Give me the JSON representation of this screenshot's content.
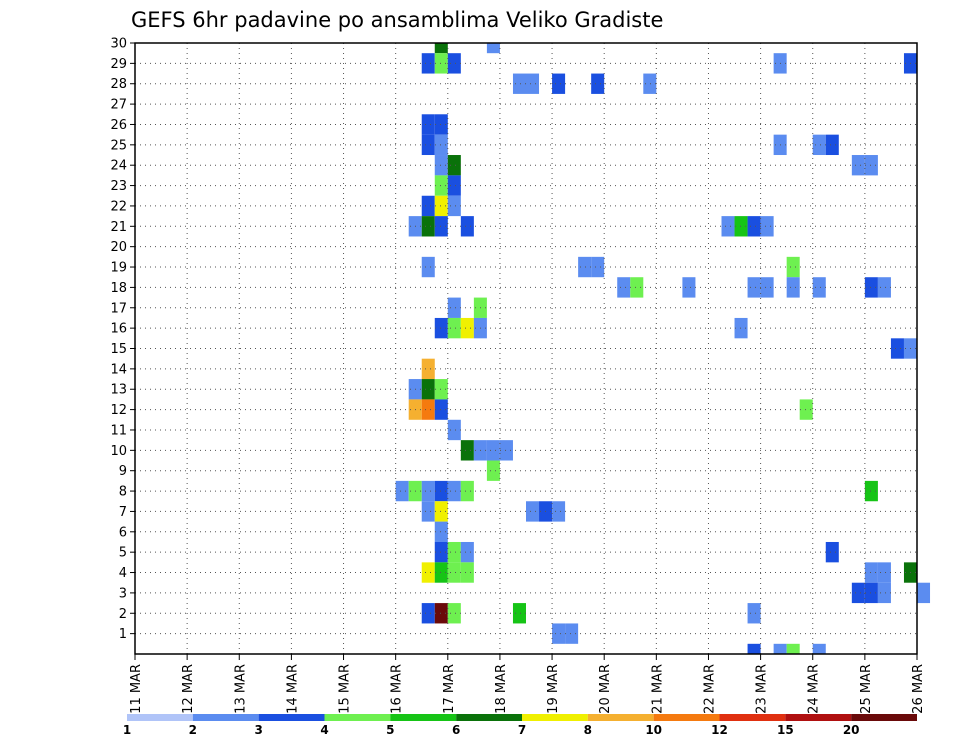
{
  "chart_data": {
    "type": "heatmap",
    "title": "GEFS 6hr padavine po ansamblima Veliko Gradiste",
    "xlabel": "",
    "ylabel": "",
    "x_ticks": [
      "11 MAR",
      "12 MAR",
      "13 MAR",
      "14 MAR",
      "15 MAR",
      "16 MAR",
      "17 MAR",
      "18 MAR",
      "19 MAR",
      "20 MAR",
      "21 MAR",
      "22 MAR",
      "23 MAR",
      "24 MAR",
      "25 MAR",
      "26 MAR"
    ],
    "y_ticks": [
      1,
      2,
      3,
      4,
      5,
      6,
      7,
      8,
      9,
      10,
      11,
      12,
      13,
      14,
      15,
      16,
      17,
      18,
      19,
      20,
      21,
      22,
      23,
      24,
      25,
      26,
      27,
      28,
      29,
      30
    ],
    "xlim_days": [
      0,
      15
    ],
    "ylim_members": [
      0,
      30
    ],
    "grid": true,
    "colorbar": {
      "labels": [
        "1",
        "2",
        "3",
        "4",
        "5",
        "6",
        "7",
        "8",
        "10",
        "12",
        "15",
        "20"
      ],
      "colors": [
        "#b0c4f8",
        "#5b8cf0",
        "#1a4fe0",
        "#6ef050",
        "#16c416",
        "#0a720a",
        "#f0f000",
        "#f5b030",
        "#f57a0f",
        "#e03010",
        "#b01010",
        "#6a0a0a"
      ]
    },
    "cell_days": 0.25,
    "cells": [
      [
        30,
        5.75,
        5
      ],
      [
        30,
        6.75,
        1
      ],
      [
        29,
        5.5,
        2
      ],
      [
        29,
        5.75,
        3
      ],
      [
        29,
        6.0,
        2
      ],
      [
        29,
        12.25,
        1
      ],
      [
        29,
        14.75,
        2
      ],
      [
        28,
        7.25,
        1
      ],
      [
        28,
        7.5,
        1
      ],
      [
        28,
        8.0,
        2
      ],
      [
        28,
        8.75,
        2
      ],
      [
        28,
        9.75,
        1
      ],
      [
        26,
        5.5,
        2
      ],
      [
        26,
        5.75,
        2
      ],
      [
        25,
        5.5,
        2
      ],
      [
        25,
        5.75,
        1
      ],
      [
        25,
        12.25,
        1
      ],
      [
        25,
        13.0,
        1
      ],
      [
        25,
        13.25,
        2
      ],
      [
        24,
        5.75,
        1
      ],
      [
        24,
        6.0,
        5
      ],
      [
        24,
        13.75,
        1
      ],
      [
        24,
        14.0,
        1
      ],
      [
        23,
        5.75,
        3
      ],
      [
        23,
        6.0,
        2
      ],
      [
        22,
        5.5,
        2
      ],
      [
        22,
        5.75,
        6
      ],
      [
        22,
        6.0,
        1
      ],
      [
        21,
        5.25,
        1
      ],
      [
        21,
        5.5,
        5
      ],
      [
        21,
        5.75,
        2
      ],
      [
        21,
        6.25,
        2
      ],
      [
        21,
        11.25,
        1
      ],
      [
        21,
        11.5,
        4
      ],
      [
        21,
        11.75,
        2
      ],
      [
        21,
        12.0,
        1
      ],
      [
        19,
        5.5,
        1
      ],
      [
        19,
        8.5,
        1
      ],
      [
        19,
        8.75,
        1
      ],
      [
        19,
        12.5,
        3
      ],
      [
        18,
        9.25,
        1
      ],
      [
        18,
        9.5,
        3
      ],
      [
        18,
        10.5,
        1
      ],
      [
        18,
        11.75,
        1
      ],
      [
        18,
        12.0,
        1
      ],
      [
        18,
        12.5,
        1
      ],
      [
        18,
        13.0,
        1
      ],
      [
        18,
        14.0,
        2
      ],
      [
        18,
        14.25,
        1
      ],
      [
        17,
        6.0,
        1
      ],
      [
        17,
        6.5,
        3
      ],
      [
        16,
        5.75,
        2
      ],
      [
        16,
        6.0,
        3
      ],
      [
        16,
        6.25,
        6
      ],
      [
        16,
        6.5,
        1
      ],
      [
        16,
        11.5,
        1
      ],
      [
        15,
        14.5,
        2
      ],
      [
        15,
        14.75,
        1
      ],
      [
        14,
        5.5,
        7
      ],
      [
        13,
        5.25,
        1
      ],
      [
        13,
        5.5,
        5
      ],
      [
        13,
        5.75,
        3
      ],
      [
        12,
        5.25,
        7
      ],
      [
        12,
        5.5,
        8
      ],
      [
        12,
        5.75,
        2
      ],
      [
        12,
        12.75,
        3
      ],
      [
        11,
        6.0,
        1
      ],
      [
        10,
        6.25,
        5
      ],
      [
        10,
        6.5,
        1
      ],
      [
        10,
        6.75,
        1
      ],
      [
        10,
        7.0,
        1
      ],
      [
        9,
        6.75,
        3
      ],
      [
        8,
        5.0,
        1
      ],
      [
        8,
        5.25,
        3
      ],
      [
        8,
        5.5,
        1
      ],
      [
        8,
        5.75,
        2
      ],
      [
        8,
        6.0,
        1
      ],
      [
        8,
        6.25,
        3
      ],
      [
        8,
        14.0,
        4
      ],
      [
        7,
        5.5,
        1
      ],
      [
        7,
        5.75,
        6
      ],
      [
        7,
        7.5,
        1
      ],
      [
        7,
        7.75,
        2
      ],
      [
        7,
        8.0,
        1
      ],
      [
        6,
        5.75,
        1
      ],
      [
        5,
        5.75,
        2
      ],
      [
        5,
        6.0,
        3
      ],
      [
        5,
        6.25,
        1
      ],
      [
        5,
        13.25,
        2
      ],
      [
        4,
        5.5,
        6
      ],
      [
        4,
        5.75,
        4
      ],
      [
        4,
        6.0,
        3
      ],
      [
        4,
        6.25,
        3
      ],
      [
        4,
        14.0,
        1
      ],
      [
        4,
        14.25,
        1
      ],
      [
        4,
        14.75,
        5
      ],
      [
        3,
        13.75,
        2
      ],
      [
        3,
        14.0,
        2
      ],
      [
        3,
        14.25,
        1
      ],
      [
        3,
        15.0,
        1
      ],
      [
        2,
        5.5,
        2
      ],
      [
        2,
        5.75,
        11
      ],
      [
        2,
        6.0,
        3
      ],
      [
        2,
        7.25,
        4
      ],
      [
        2,
        11.75,
        1
      ],
      [
        1,
        8.0,
        1
      ],
      [
        1,
        8.25,
        1
      ],
      [
        0,
        11.75,
        2
      ],
      [
        0,
        12.25,
        1
      ],
      [
        0,
        12.5,
        3
      ],
      [
        0,
        13.0,
        1
      ]
    ]
  }
}
